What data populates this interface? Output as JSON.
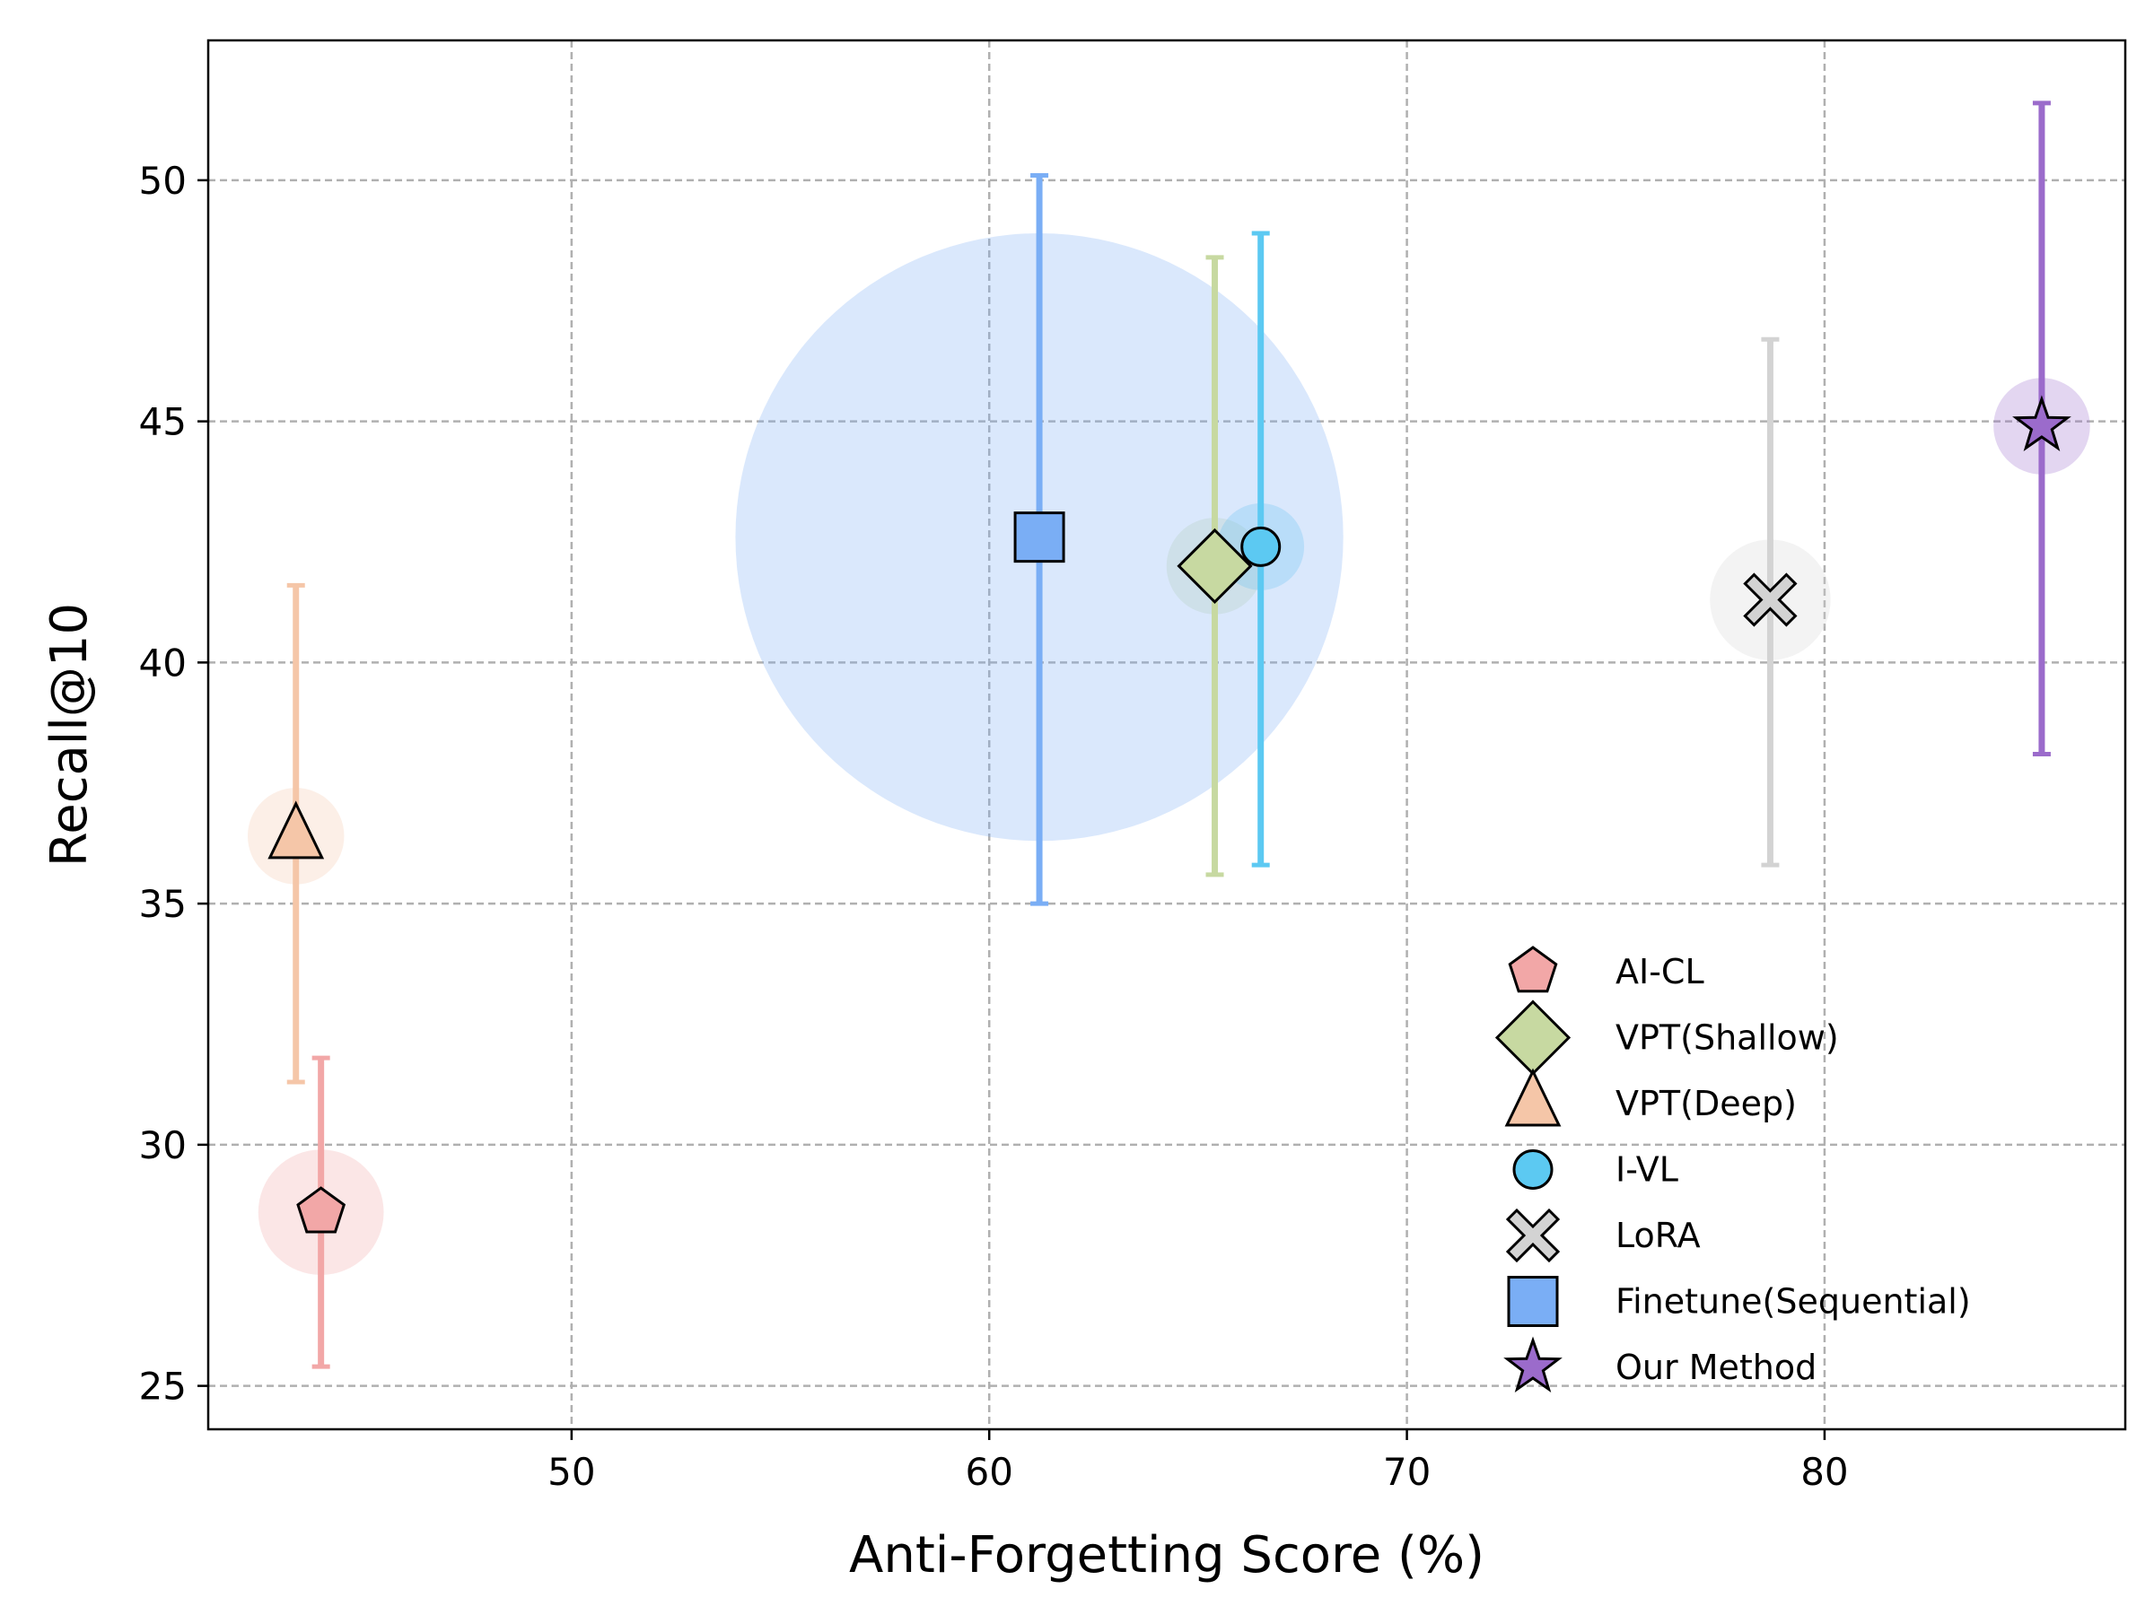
{
  "chart_data": {
    "type": "scatter",
    "xlabel": "Anti-Forgetting Score (%)",
    "ylabel": "Recall@10",
    "xlim": [
      41.3,
      87.2
    ],
    "ylim": [
      24.1,
      52.9
    ],
    "xticks": [
      50,
      60,
      70,
      80
    ],
    "yticks": [
      25,
      30,
      35,
      40,
      45,
      50
    ],
    "grid": true,
    "legend_position": "lower-right",
    "series": [
      {
        "name": "AI-CL",
        "marker": "pentagon",
        "color": "#F2A7A7",
        "x": 44.0,
        "y": 28.6,
        "y_err_low": 25.4,
        "y_err_high": 31.8,
        "bubble_r": 1.3
      },
      {
        "name": "VPT(Shallow)",
        "marker": "diamond",
        "color": "#C7D9A1",
        "x": 65.4,
        "y": 42.0,
        "y_err_low": 35.6,
        "y_err_high": 48.4,
        "bubble_r": 1.0
      },
      {
        "name": "VPT(Deep)",
        "marker": "triangle",
        "color": "#F5C6A8",
        "x": 43.4,
        "y": 36.4,
        "y_err_low": 31.3,
        "y_err_high": 41.6,
        "bubble_r": 1.0
      },
      {
        "name": "I-VL",
        "marker": "circle",
        "color": "#5CC9F2",
        "x": 66.5,
        "y": 42.4,
        "y_err_low": 35.8,
        "y_err_high": 48.9,
        "bubble_r": 0.9
      },
      {
        "name": "LoRA",
        "marker": "x",
        "color": "#D3D3D3",
        "x": 78.7,
        "y": 41.3,
        "y_err_low": 35.8,
        "y_err_high": 46.7,
        "bubble_r": 1.25
      },
      {
        "name": "Finetune(Sequential)",
        "marker": "square",
        "color": "#7AAEF5",
        "x": 61.2,
        "y": 42.6,
        "y_err_low": 35.0,
        "y_err_high": 50.1,
        "bubble_r": 6.3
      },
      {
        "name": "Our Method",
        "marker": "star",
        "color": "#9B6BCB",
        "x": 85.2,
        "y": 44.9,
        "y_err_low": 38.1,
        "y_err_high": 51.6,
        "bubble_r": 1.0
      }
    ]
  }
}
